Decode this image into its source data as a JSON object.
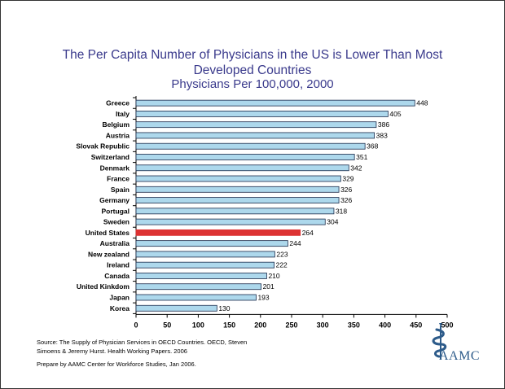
{
  "title_lines": [
    "The Per Capita Number of Physicians in the US is Lower Than Most",
    "Developed Countries",
    "Physicians Per 100,000, 2000"
  ],
  "chart_data": {
    "type": "bar",
    "orientation": "horizontal",
    "title": "The Per Capita Number of Physicians in the US is Lower Than Most Developed Countries",
    "subtitle": "Physicians Per 100,000, 2000",
    "categories": [
      "Greece",
      "Italy",
      "Belgium",
      "Austria",
      "Slovak Republic",
      "Switzerland",
      "Denmark",
      "France",
      "Spain",
      "Germany",
      "Portugal",
      "Sweden",
      "United States",
      "Australia",
      "New zealand",
      "Ireland",
      "Canada",
      "United Kinkdom",
      "Japan",
      "Korea"
    ],
    "values": [
      448,
      405,
      386,
      383,
      368,
      351,
      342,
      329,
      326,
      326,
      318,
      304,
      264,
      244,
      223,
      222,
      210,
      201,
      193,
      130
    ],
    "highlight_category": "United States",
    "xlim": [
      0,
      500
    ],
    "xticks": [
      0,
      50,
      100,
      150,
      200,
      250,
      300,
      350,
      400,
      450,
      500
    ],
    "data_labels": true,
    "grid": false,
    "colors": {
      "bar": "#add8ec",
      "bar_edge": "#1a2a4a",
      "highlight": "#dd3333",
      "axis": "#000000"
    }
  },
  "source": {
    "line1": "Source: The Supply of Physician Services in OECD Countries. OECD, Steven",
    "line2": "Simoens & Jeremy Hurst.  Health Working Papers. 2006",
    "prepared": "Prepare by AAMC Center for Workforce Studies, Jan 2006."
  },
  "logo": {
    "text": "AAMC",
    "icon": "caduceus-icon",
    "color": "#2d5b8a"
  }
}
